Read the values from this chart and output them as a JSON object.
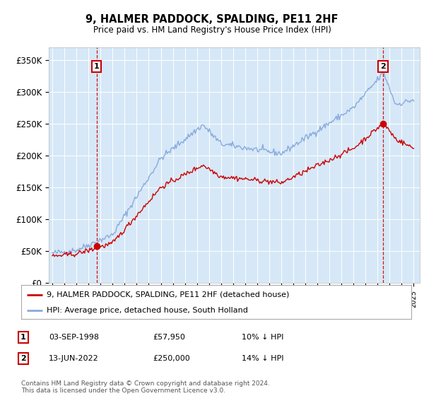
{
  "title": "9, HALMER PADDOCK, SPALDING, PE11 2HF",
  "subtitle": "Price paid vs. HM Land Registry's House Price Index (HPI)",
  "ylim": [
    0,
    370000
  ],
  "yticks": [
    0,
    50000,
    100000,
    150000,
    200000,
    250000,
    300000,
    350000
  ],
  "ytick_labels": [
    "£0",
    "£50K",
    "£100K",
    "£150K",
    "£200K",
    "£250K",
    "£300K",
    "£350K"
  ],
  "bg_color": "#d6e8f7",
  "legend_label_red": "9, HALMER PADDOCK, SPALDING, PE11 2HF (detached house)",
  "legend_label_blue": "HPI: Average price, detached house, South Holland",
  "transaction1_date": "03-SEP-1998",
  "transaction1_price": 57950,
  "transaction1_hpi": "10% ↓ HPI",
  "transaction2_date": "13-JUN-2022",
  "transaction2_price": 250000,
  "transaction2_hpi": "14% ↓ HPI",
  "footer": "Contains HM Land Registry data © Crown copyright and database right 2024.\nThis data is licensed under the Open Government Licence v3.0.",
  "red_color": "#cc0000",
  "blue_color": "#88aadd",
  "vline_color": "#cc0000",
  "marker_color": "#cc0000",
  "t1_year": 1998.67,
  "t2_year": 2022.45,
  "t1_price": 57950,
  "t2_price": 250000
}
